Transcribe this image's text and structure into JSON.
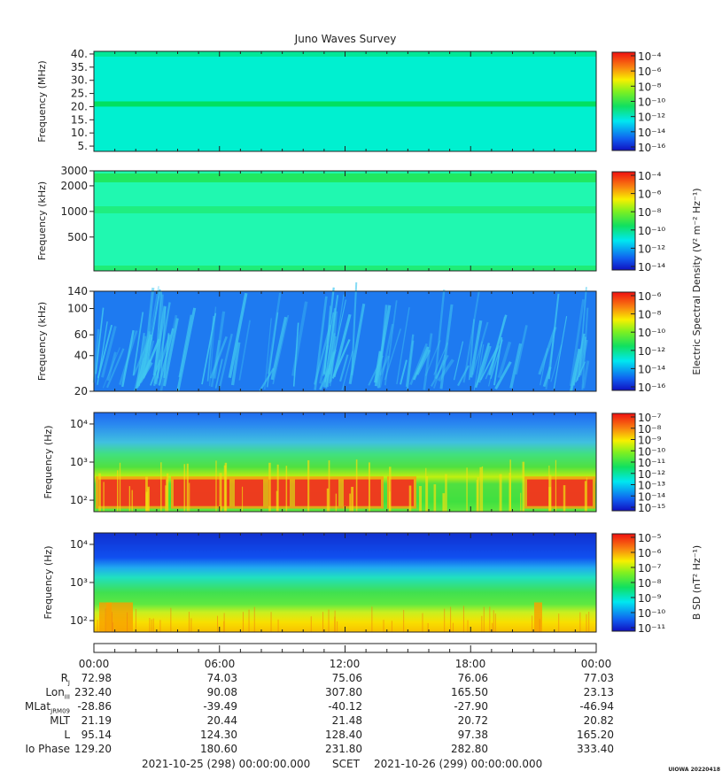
{
  "page": {
    "title": "Juno Waves Survey",
    "stamp": "UIOWA 20220418",
    "scet_start": "2021-10-25 (298) 00:00:00.000",
    "scet_label": "SCET",
    "scet_end": "2021-10-26 (299) 00:00:00.000",
    "e_label": "Electric Spectral Density (V² m⁻² Hz⁻¹)",
    "b_label": "B SD (nT² Hz⁻¹)"
  },
  "chart_data": [
    {
      "type": "heatmap",
      "panel": 1,
      "ylabel": "Frequency (MHz)",
      "yticks": [
        {
          "label": "5.",
          "value": 5
        },
        {
          "label": "10.",
          "value": 10
        },
        {
          "label": "15.",
          "value": 15
        },
        {
          "label": "20.",
          "value": 20
        },
        {
          "label": "25.",
          "value": 25
        },
        {
          "label": "30.",
          "value": 30
        },
        {
          "label": "35.",
          "value": 35
        },
        {
          "label": "40.",
          "value": 40
        }
      ],
      "colorbar_ticks": [
        "10⁻⁴",
        "10⁻⁶",
        "10⁻⁸",
        "10⁻¹⁰",
        "10⁻¹²",
        "10⁻¹⁴",
        "10⁻¹⁶"
      ],
      "colors": {
        "background": "#00f0d0",
        "band": "#00e060"
      }
    },
    {
      "type": "heatmap",
      "panel": 2,
      "ylabel": "Frequency (kHz)",
      "yticks": [
        {
          "label": "3000",
          "value": 3000
        },
        {
          "label": "2000",
          "value": 2000
        },
        {
          "label": "1000",
          "value": 1000
        },
        {
          "label": "500",
          "value": 500
        }
      ],
      "colorbar_ticks": [
        "10⁻⁴",
        "10⁻⁶",
        "10⁻⁸",
        "10⁻¹⁰",
        "10⁻¹²",
        "10⁻¹⁴"
      ],
      "colors": {
        "background": "#20f8b0",
        "band": "#20e860"
      }
    },
    {
      "type": "heatmap",
      "panel": 3,
      "ylabel": "Frequency (kHz)",
      "yticks": [
        {
          "label": "140",
          "value": 140
        },
        {
          "label": "100",
          "value": 100
        },
        {
          "label": "60",
          "value": 60
        },
        {
          "label": "40",
          "value": 40
        },
        {
          "label": "20",
          "value": 20
        }
      ],
      "colorbar_ticks": [
        "10⁻⁶",
        "10⁻⁸",
        "10⁻¹⁰",
        "10⁻¹²",
        "10⁻¹⁴",
        "10⁻¹⁶"
      ],
      "colors": {
        "background": "#1e7af0",
        "streak": "#40c8f0"
      }
    },
    {
      "type": "heatmap",
      "panel": 4,
      "ylabel": "Frequency (Hz)",
      "yticks": [
        {
          "label": "10⁴",
          "value": 10000
        },
        {
          "label": "10³",
          "value": 1000
        },
        {
          "label": "10²",
          "value": 100
        }
      ],
      "colorbar_ticks": [
        "10⁻⁷",
        "10⁻⁸",
        "10⁻⁹",
        "10⁻¹⁰",
        "10⁻¹¹",
        "10⁻¹²",
        "10⁻¹³",
        "10⁻¹⁴",
        "10⁻¹⁵"
      ],
      "colors": {
        "top": "#1e6af0",
        "mid": "#30e040",
        "hot": "#f02020"
      }
    },
    {
      "type": "heatmap",
      "panel": 5,
      "ylabel": "Frequency (Hz)",
      "yticks": [
        {
          "label": "10⁴",
          "value": 10000
        },
        {
          "label": "10³",
          "value": 1000
        },
        {
          "label": "10²",
          "value": 100
        }
      ],
      "colorbar_ticks": [
        "10⁻⁵",
        "10⁻⁶",
        "10⁻⁷",
        "10⁻⁸",
        "10⁻⁹",
        "10⁻¹⁰",
        "10⁻¹¹"
      ],
      "colors": {
        "top": "#1040e0",
        "mid": "#30e040",
        "low": "#f8e000"
      }
    }
  ],
  "ephemeris": {
    "times": [
      "00:00",
      "06:00",
      "12:00",
      "18:00",
      "00:00"
    ],
    "rows": [
      {
        "label": "R_J",
        "values": [
          "72.98",
          "74.03",
          "75.06",
          "76.06",
          "77.03"
        ]
      },
      {
        "label": "Lon_III",
        "values": [
          "232.40",
          "90.08",
          "307.80",
          "165.50",
          "23.13"
        ]
      },
      {
        "label": "MLat_JRM09",
        "values": [
          "-28.86",
          "-39.49",
          "-40.12",
          "-27.90",
          "-46.94"
        ]
      },
      {
        "label": "MLT",
        "values": [
          "21.19",
          "20.44",
          "21.48",
          "20.72",
          "20.82"
        ]
      },
      {
        "label": "L",
        "values": [
          "95.14",
          "124.30",
          "128.40",
          "97.38",
          "165.20"
        ]
      },
      {
        "label": "Io Phase",
        "values": [
          "129.20",
          "180.60",
          "231.80",
          "282.80",
          "333.40"
        ]
      }
    ]
  }
}
